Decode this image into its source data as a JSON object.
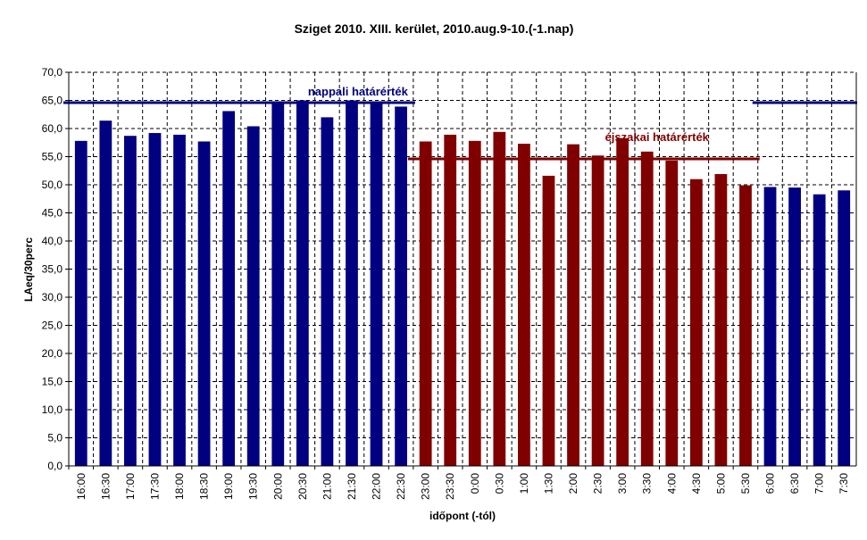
{
  "chart_data": {
    "type": "bar",
    "title": "Sziget 2010.  XIII. kerület, 2010.aug.9-10.(-1.nap)",
    "xlabel": "időpont (-tól)",
    "ylabel": "LAeq/30perc",
    "ylim": [
      0,
      70
    ],
    "ytick_step": 5,
    "ytick_labels": [
      "0,0",
      "5,0",
      "10,0",
      "15,0",
      "20,0",
      "25,0",
      "30,0",
      "35,0",
      "40,0",
      "45,0",
      "50,0",
      "55,0",
      "60,0",
      "65,0",
      "70,0"
    ],
    "grid": "horizontal-dashed",
    "categories": [
      "16:00",
      "16:30",
      "17:00",
      "17:30",
      "18:00",
      "18:30",
      "19:00",
      "19:30",
      "20:00",
      "20:30",
      "21:00",
      "21:30",
      "22:00",
      "22:30",
      "23:00",
      "23:30",
      "0:00",
      "0:30",
      "1:00",
      "1:30",
      "2:00",
      "2:30",
      "3:00",
      "3:30",
      "4:00",
      "4:30",
      "5:00",
      "5:30",
      "6:00",
      "6:30",
      "7:00",
      "7:30"
    ],
    "values": [
      57.8,
      61.4,
      58.7,
      59.2,
      58.9,
      57.7,
      63.1,
      60.4,
      64.8,
      65.0,
      62.0,
      65.0,
      64.8,
      63.9,
      57.7,
      58.9,
      57.8,
      59.4,
      57.3,
      51.6,
      57.2,
      55.2,
      58.3,
      55.9,
      54.3,
      51.0,
      51.9,
      49.9,
      49.6,
      49.5,
      48.3,
      49.0
    ],
    "bar_colors": [
      "#000080",
      "#000080",
      "#000080",
      "#000080",
      "#000080",
      "#000080",
      "#000080",
      "#000080",
      "#000080",
      "#000080",
      "#000080",
      "#000080",
      "#000080",
      "#000080",
      "#800000",
      "#800000",
      "#800000",
      "#800000",
      "#800000",
      "#800000",
      "#800000",
      "#800000",
      "#800000",
      "#800000",
      "#800000",
      "#800000",
      "#800000",
      "#800000",
      "#000080",
      "#000080",
      "#000080",
      "#000080"
    ],
    "reference_lines": [
      {
        "label": "nappali határérték",
        "value": 64.6,
        "color": "#000080",
        "spans": [
          [
            0,
            13
          ],
          [
            28,
            31
          ]
        ]
      },
      {
        "label": "éjszakai határérték",
        "value": 54.6,
        "color": "#800000",
        "spans": [
          [
            14,
            27
          ]
        ]
      }
    ]
  }
}
